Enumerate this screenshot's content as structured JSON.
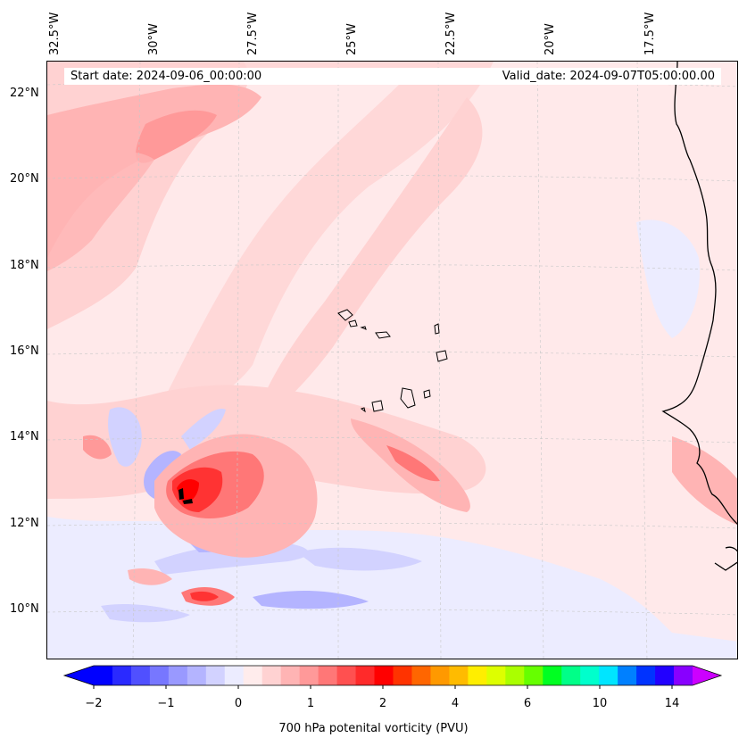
{
  "map": {
    "title": "",
    "start_label": "Start date: 2024-09-06_00:00:00",
    "valid_label": "Valid_date: 2024-09-07T05:00:00.00",
    "lon_ticks": [
      "32.5°W",
      "30°W",
      "27.5°W",
      "25°W",
      "22.5°W",
      "20°W",
      "17.5°W"
    ],
    "lat_ticks": [
      "22°N",
      "20°N",
      "18°N",
      "16°N",
      "14°N",
      "12°N",
      "10°N"
    ],
    "region_islands": "Cabo Verde",
    "coastline": "West Africa"
  },
  "colorbar": {
    "label": "700 hPa potenital vorticity (PVU)",
    "tick_labels": [
      "−2",
      "−1",
      "0",
      "1",
      "2",
      "4",
      "6",
      "10",
      "14"
    ],
    "colors": [
      "#0000ff",
      "#2a2aff",
      "#5050ff",
      "#7777ff",
      "#9999ff",
      "#b4b4ff",
      "#d2d2ff",
      "#ececff",
      "#ffecec",
      "#ffd2d2",
      "#ffb4b4",
      "#ff9999",
      "#ff7777",
      "#ff5050",
      "#ff2a2a",
      "#ff0000",
      "#ff3300",
      "#ff6600",
      "#ff9900",
      "#ffbb00",
      "#ffee00",
      "#ddff00",
      "#aaff00",
      "#66ff00",
      "#00ff22",
      "#00ff88",
      "#00ffcc",
      "#00e5ff",
      "#0080ff",
      "#0033ff",
      "#2200ff",
      "#8800ff"
    ],
    "extend_low": "#0000ff",
    "extend_high": "#cc00ff"
  },
  "fields": {
    "background": "#ffe9ea",
    "light_red": "#ffd2d2",
    "mid_red": "#ffb4b4",
    "red": "#ff7777",
    "strong_red": "#ff3333",
    "light_blue": "#ececff",
    "mid_blue": "#d2d2ff",
    "blue": "#9999ff",
    "core": "#000000"
  }
}
